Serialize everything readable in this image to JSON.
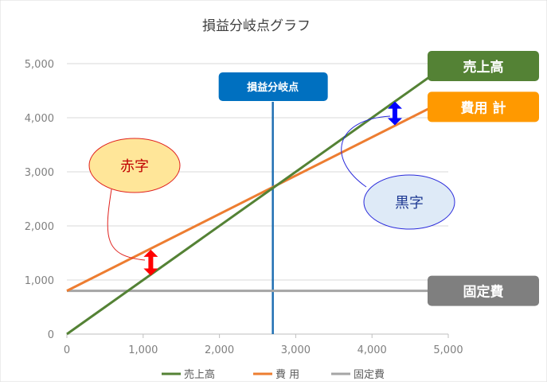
{
  "chart_data": {
    "type": "line",
    "title": "損益分岐点グラフ",
    "xlim": [
      0,
      5000
    ],
    "ylim": [
      0,
      5000
    ],
    "x_ticks": [
      0,
      1000,
      2000,
      3000,
      4000,
      5000
    ],
    "y_ticks": [
      0,
      1000,
      2000,
      3000,
      4000,
      5000
    ],
    "x_tick_labels": [
      "0",
      "1,000",
      "2,000",
      "3,000",
      "4,000",
      "5,000"
    ],
    "y_tick_labels": [
      "0",
      "1,000",
      "2,000",
      "3,000",
      "4,000",
      "5,000"
    ],
    "grid": true,
    "legend_position": "bottom",
    "series": [
      {
        "name": "売上高",
        "color": "#548235",
        "x": [
          0,
          5000
        ],
        "y": [
          0,
          5000
        ]
      },
      {
        "name": "費 用",
        "color": "#ED7D31",
        "x": [
          0,
          5000
        ],
        "y": [
          800,
          4350
        ]
      },
      {
        "name": "固定費",
        "color": "#A5A5A5",
        "x": [
          0,
          5000
        ],
        "y": [
          800,
          800
        ]
      }
    ],
    "break_even": {
      "label": "損益分岐点",
      "x": 2700,
      "color": "#1F6FB2",
      "label_bg": "#0070C0"
    },
    "line_labels": [
      {
        "text": "売上高",
        "bg": "#548235",
        "y": 5000
      },
      {
        "text": "費用 計",
        "bg": "#FF9900",
        "y": 4200
      },
      {
        "text": "固定費",
        "bg": "#7F7F7F",
        "y": 800
      }
    ],
    "annotations": [
      {
        "text": "赤字",
        "fill": "#FFE699",
        "stroke": "#E0221E",
        "text_color": "#C00000",
        "arrow_color": "#FF0000",
        "arrow_x": 1100,
        "arrow_y1": 1080,
        "arrow_y2": 1560
      },
      {
        "text": "黒字",
        "fill": "#DEEAF7",
        "stroke": "#2A2ADB",
        "text_color": "#1F3A93",
        "arrow_color": "#0000FF",
        "arrow_x": 4300,
        "arrow_y1": 3860,
        "arrow_y2": 4300
      }
    ]
  }
}
